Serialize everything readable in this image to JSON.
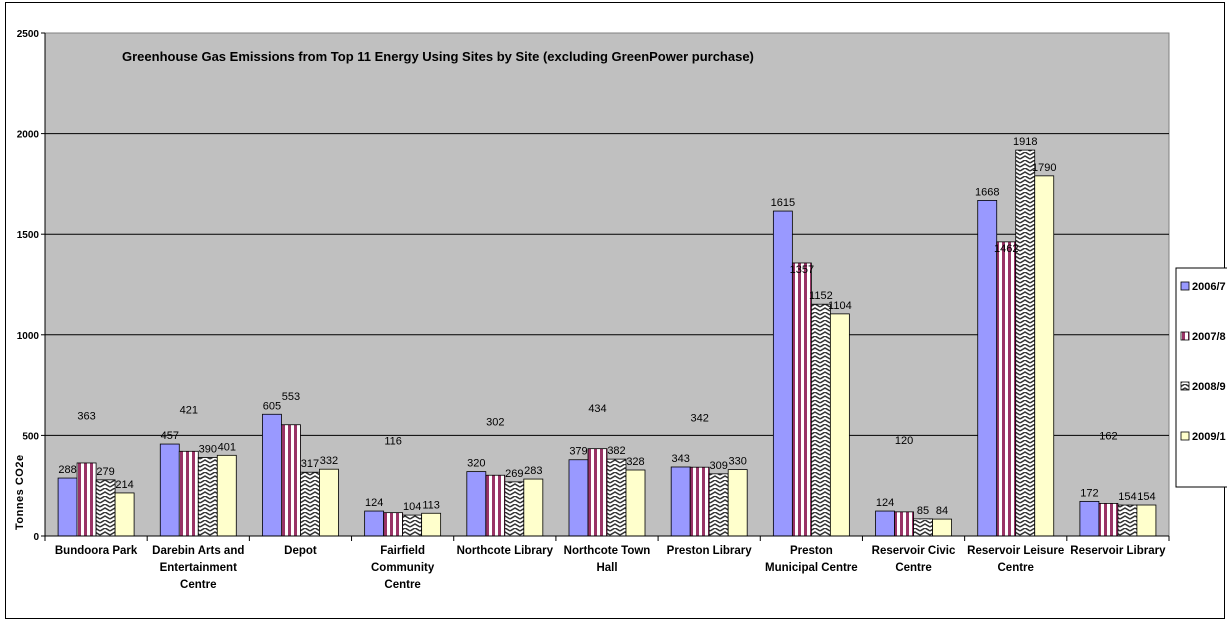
{
  "chart_data": {
    "type": "bar",
    "title": "Greenhouse Gas Emissions from Top 11 Energy Using Sites by Site (excluding GreenPower purchase)",
    "xlabel": "",
    "ylabel": "Tonnes CO2e",
    "ylim": [
      0,
      2500
    ],
    "yticks": [
      0,
      500,
      1000,
      1500,
      2000,
      2500
    ],
    "grid": true,
    "legend_position": "right",
    "categories": [
      [
        "Bundoora Park"
      ],
      [
        "Darebin Arts and",
        "Entertainment",
        "Centre"
      ],
      [
        "Depot"
      ],
      [
        "Fairfield",
        "Community",
        "Centre"
      ],
      [
        "Northcote Library"
      ],
      [
        "Northcote Town",
        "Hall"
      ],
      [
        "Preston Library"
      ],
      [
        "Preston",
        "Municipal Centre"
      ],
      [
        "Reservoir Civic",
        "Centre"
      ],
      [
        "Reservoir Leisure",
        "Centre"
      ],
      [
        "Reservoir Library"
      ]
    ],
    "series": [
      {
        "name": "2006/7",
        "color": "#9999ff",
        "pattern": "solid",
        "values": [
          288,
          457,
          605,
          124,
          320,
          379,
          343,
          1615,
          124,
          1668,
          172
        ]
      },
      {
        "name": "2007/8",
        "color": "#993366",
        "pattern": "stripes",
        "values": [
          363,
          421,
          553,
          116,
          302,
          434,
          342,
          1357,
          120,
          1462,
          162
        ]
      },
      {
        "name": "2008/9",
        "color": "#333333",
        "pattern": "zigzag",
        "values": [
          279,
          390,
          317,
          104,
          269,
          382,
          309,
          1152,
          85,
          1918,
          154
        ]
      },
      {
        "name": "2009/1",
        "color": "#ffffcc",
        "pattern": "solid",
        "values": [
          214,
          401,
          332,
          113,
          283,
          328,
          330,
          1104,
          84,
          1790,
          154
        ]
      }
    ]
  }
}
